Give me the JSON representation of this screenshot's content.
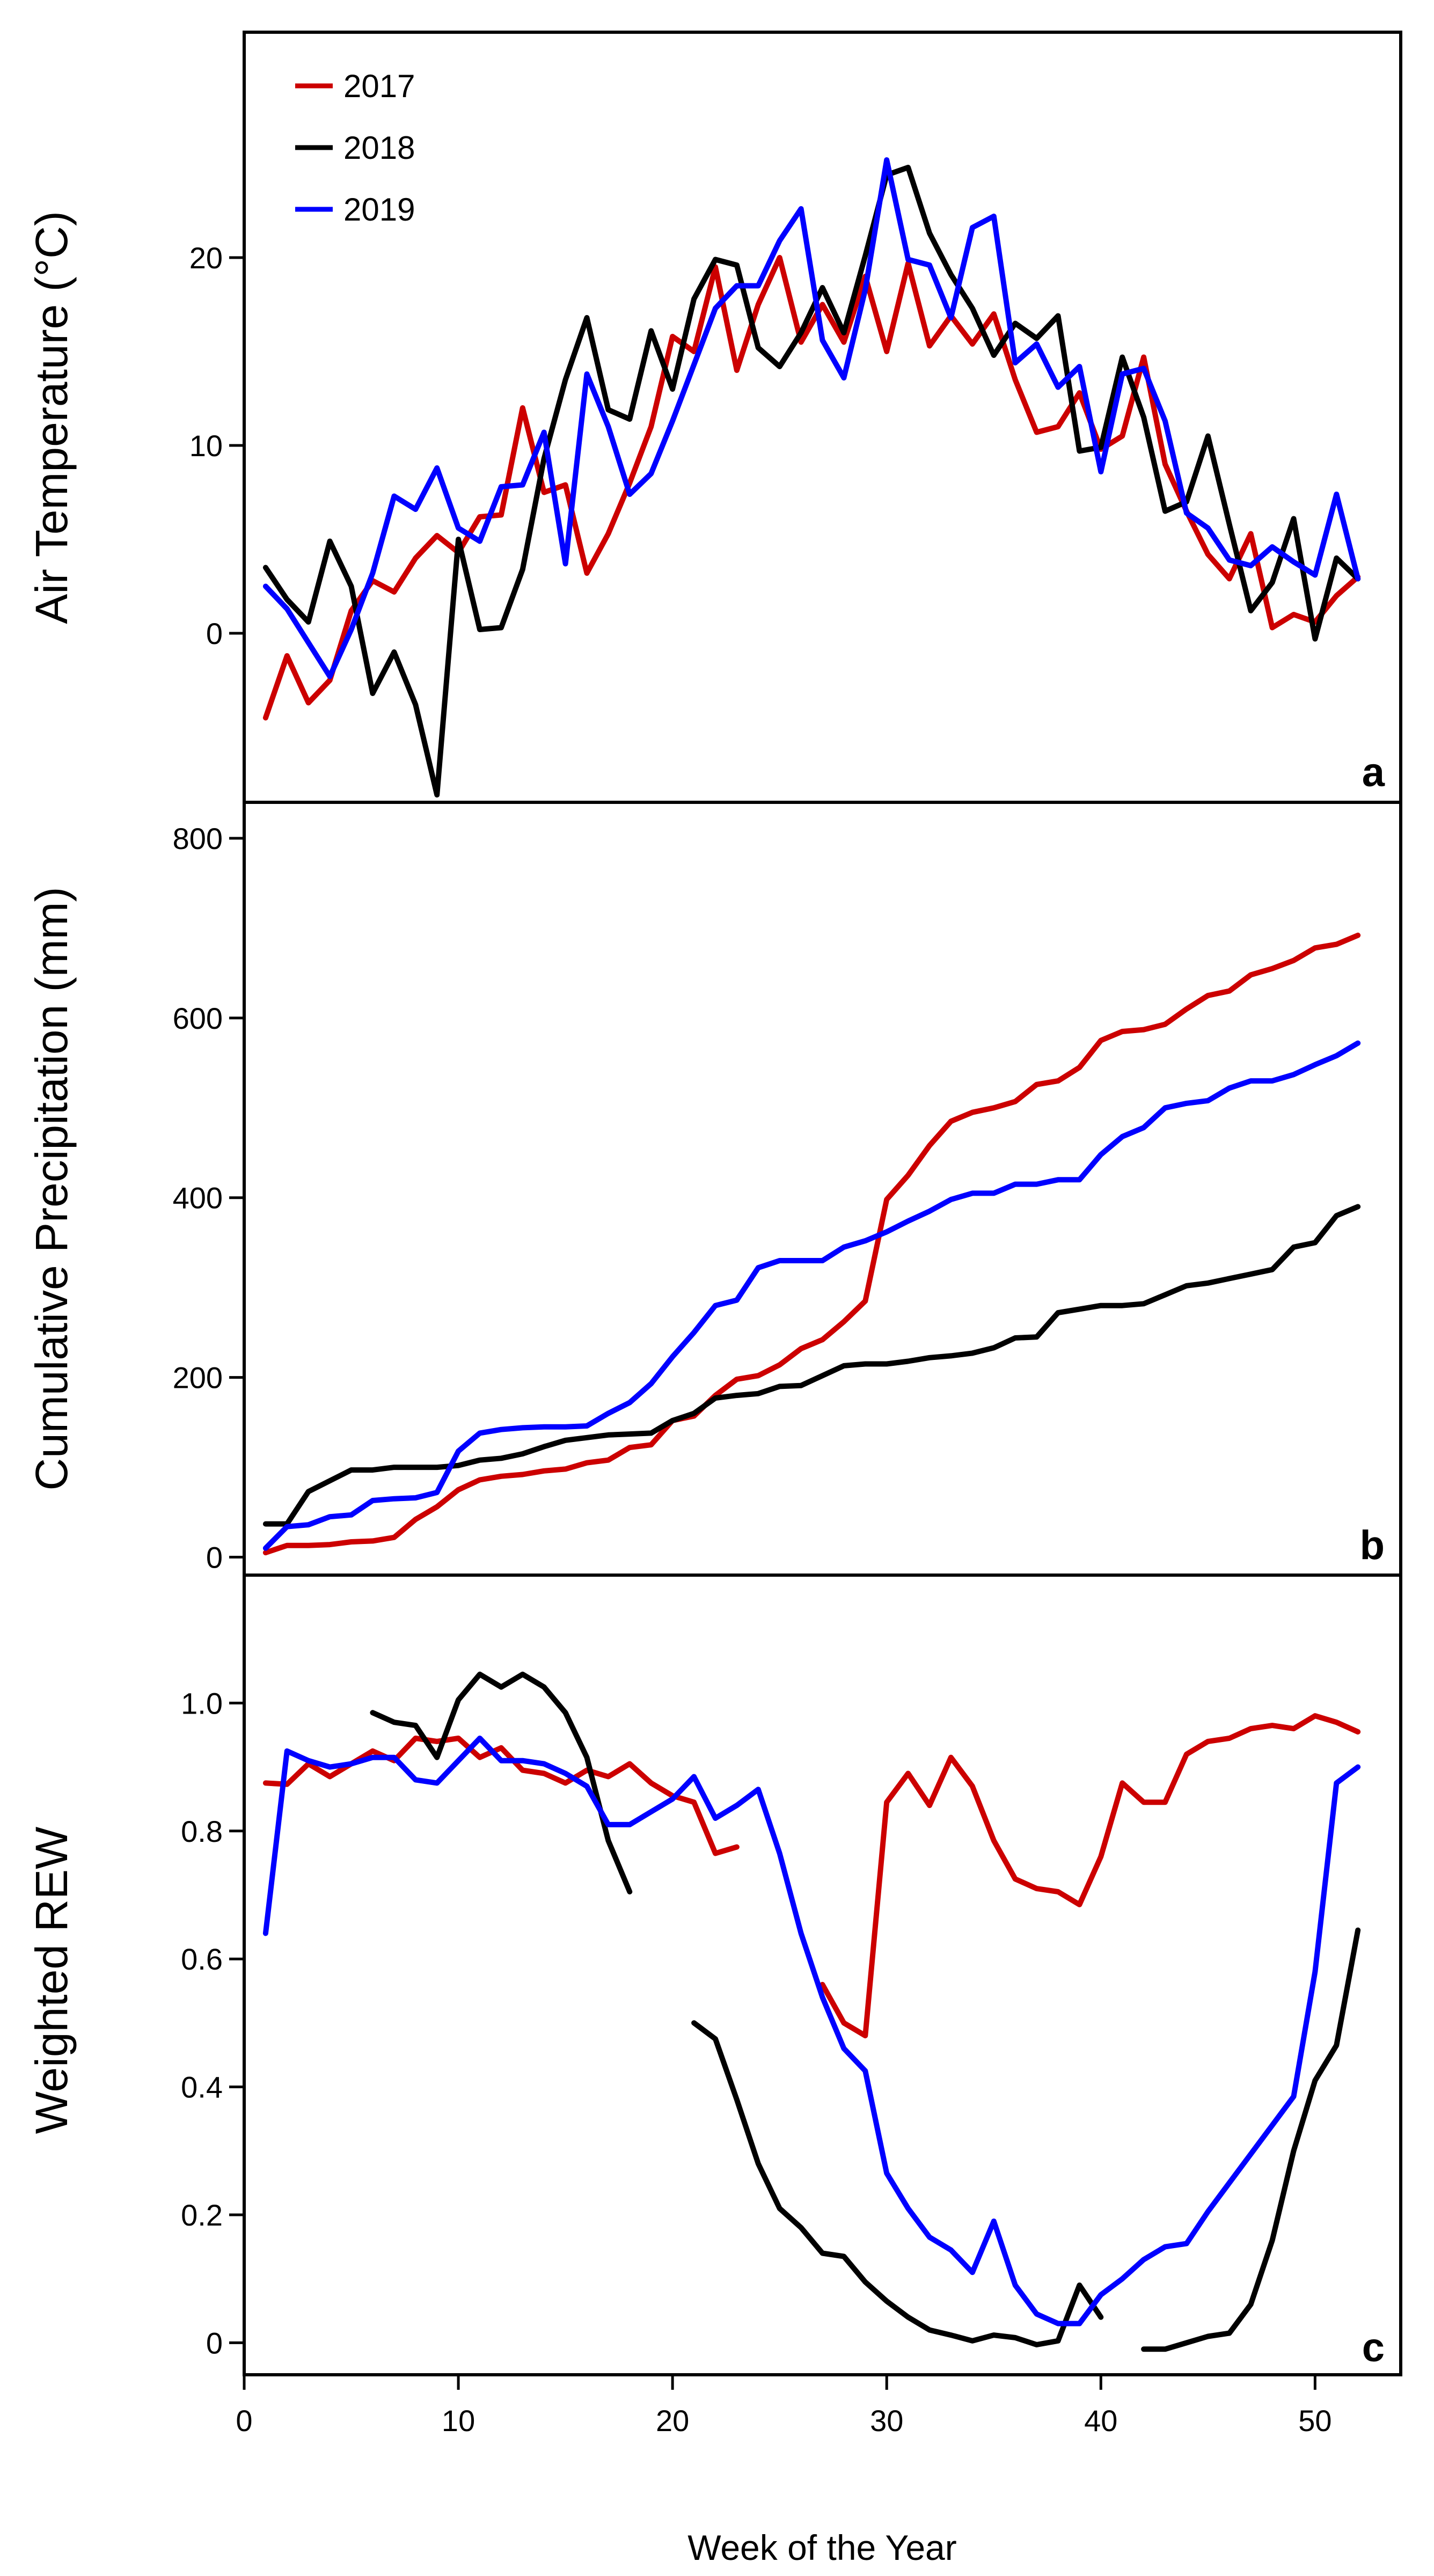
{
  "chart_data": [
    {
      "panel": "a",
      "type": "line",
      "ylabel": "Air Temperature (°C)",
      "xlabel": "",
      "xlim": [
        0,
        54
      ],
      "ylim": [
        -9,
        32
      ],
      "yticks": [
        0,
        10,
        20
      ],
      "xticks": [],
      "legend": {
        "position": "top-left",
        "entries": [
          {
            "label": "2017",
            "color": "#cc0000"
          },
          {
            "label": "2018",
            "color": "#000000"
          },
          {
            "label": "2019",
            "color": "#0000ff"
          }
        ]
      },
      "series": [
        {
          "name": "2017",
          "color": "#cc0000",
          "x": [
            1,
            2,
            3,
            4,
            5,
            6,
            7,
            8,
            9,
            10,
            11,
            12,
            13,
            14,
            15,
            16,
            17,
            18,
            19,
            20,
            21,
            22,
            23,
            24,
            25,
            26,
            27,
            28,
            29,
            30,
            31,
            32,
            33,
            34,
            35,
            36,
            37,
            38,
            39,
            40,
            41,
            42,
            43,
            44,
            45,
            46,
            47,
            48,
            49,
            50,
            51,
            52
          ],
          "y": [
            -4.5,
            -1.2,
            -3.7,
            -2.5,
            1.2,
            2.8,
            2.2,
            4,
            5.2,
            4.3,
            6.2,
            6.3,
            12,
            7.5,
            7.9,
            3.2,
            5.3,
            8,
            11,
            15.8,
            15,
            19.5,
            14,
            17.5,
            20,
            15.5,
            17.5,
            15.5,
            19,
            15,
            19.7,
            15.3,
            16.9,
            15.4,
            17,
            13.5,
            10.7,
            11,
            12.8,
            9.8,
            10.5,
            14.7,
            9,
            6.5,
            4.2,
            2.9,
            5.3,
            0.3,
            1,
            0.6,
            2,
            3
          ]
        },
        {
          "name": "2018",
          "color": "#000000",
          "x": [
            1,
            2,
            3,
            4,
            5,
            6,
            7,
            8,
            9,
            10,
            11,
            12,
            13,
            14,
            15,
            16,
            17,
            18,
            19,
            20,
            21,
            22,
            23,
            24,
            25,
            26,
            27,
            28,
            29,
            30,
            31,
            32,
            33,
            34,
            35,
            36,
            37,
            38,
            39,
            40,
            41,
            42,
            43,
            44,
            45,
            46,
            47,
            48,
            49,
            50,
            51,
            52
          ],
          "y": [
            3.5,
            1.8,
            0.6,
            4.9,
            2.5,
            -3.2,
            -1,
            -3.8,
            -8.6,
            5,
            0.2,
            0.3,
            3.4,
            9.3,
            13.5,
            16.8,
            11.9,
            11.4,
            16.1,
            13,
            17.8,
            19.9,
            19.6,
            15.2,
            14.2,
            16,
            18.4,
            16,
            20.1,
            24.4,
            24.8,
            21.3,
            19.1,
            17.3,
            14.8,
            16.5,
            15.7,
            16.9,
            9.7,
            9.9,
            14.7,
            11.5,
            6.5,
            7,
            10.5,
            5.8,
            1.2,
            2.7,
            6.1,
            -0.3,
            4,
            2.9
          ]
        },
        {
          "name": "2019",
          "color": "#0000ff",
          "x": [
            1,
            2,
            3,
            4,
            5,
            6,
            7,
            8,
            9,
            10,
            11,
            12,
            13,
            14,
            15,
            16,
            17,
            18,
            19,
            20,
            21,
            22,
            23,
            24,
            25,
            26,
            27,
            28,
            29,
            30,
            31,
            32,
            33,
            34,
            35,
            36,
            37,
            38,
            39,
            40,
            41,
            42,
            43,
            44,
            45,
            46,
            47,
            48,
            49,
            50,
            51,
            52
          ],
          "y": [
            2.5,
            1.3,
            -0.5,
            -2.3,
            0.2,
            3.2,
            7.3,
            6.6,
            8.8,
            5.6,
            4.9,
            7.8,
            7.9,
            10.7,
            3.7,
            13.8,
            11,
            7.4,
            8.5,
            11.3,
            14.3,
            17.3,
            18.5,
            18.5,
            20.9,
            22.6,
            15.6,
            13.6,
            18.3,
            25.2,
            19.9,
            19.6,
            16.8,
            21.6,
            22.2,
            14.4,
            15.4,
            13.1,
            14.2,
            8.6,
            13.8,
            14.1,
            11.3,
            6.4,
            5.6,
            3.9,
            3.6,
            4.6,
            3.8,
            3.1,
            7.4,
            2.9
          ]
        }
      ]
    },
    {
      "panel": "b",
      "type": "line",
      "ylabel": "Cumulative Precipitation (mm)",
      "xlabel": "",
      "xlim": [
        0,
        54
      ],
      "ylim": [
        -20,
        840
      ],
      "yticks": [
        0,
        200,
        400,
        600,
        800
      ],
      "xticks": [],
      "series": [
        {
          "name": "2017",
          "color": "#cc0000",
          "x": [
            1,
            2,
            3,
            4,
            5,
            6,
            7,
            8,
            9,
            10,
            11,
            12,
            13,
            14,
            15,
            16,
            17,
            18,
            19,
            20,
            21,
            22,
            23,
            24,
            25,
            26,
            27,
            28,
            29,
            30,
            31,
            32,
            33,
            34,
            35,
            36,
            37,
            38,
            39,
            40,
            41,
            42,
            43,
            44,
            45,
            46,
            47,
            48,
            49,
            50,
            51,
            52
          ],
          "y": [
            5,
            13,
            13,
            14,
            17,
            18,
            22,
            42,
            56,
            75,
            86,
            90,
            92,
            96,
            98,
            105,
            108,
            122,
            125,
            152,
            157,
            180,
            198,
            202,
            214,
            232,
            242,
            262,
            285,
            398,
            425,
            458,
            485,
            495,
            500,
            507,
            526,
            530,
            545,
            575,
            585,
            587,
            593,
            610,
            625,
            630,
            648,
            655,
            664,
            678,
            682,
            692
          ]
        },
        {
          "name": "2018",
          "color": "#000000",
          "x": [
            1,
            2,
            3,
            4,
            5,
            6,
            7,
            8,
            9,
            10,
            11,
            12,
            13,
            14,
            15,
            16,
            17,
            18,
            19,
            20,
            21,
            22,
            23,
            24,
            25,
            26,
            27,
            28,
            29,
            30,
            31,
            32,
            33,
            34,
            35,
            36,
            37,
            38,
            39,
            40,
            41,
            42,
            43,
            44,
            45,
            46,
            47,
            48,
            49,
            50,
            51,
            52
          ],
          "y": [
            37,
            37,
            73,
            85,
            97,
            97,
            100,
            100,
            100,
            102,
            108,
            110,
            115,
            123,
            130,
            133,
            136,
            137,
            138,
            152,
            160,
            177,
            180,
            182,
            190,
            191,
            202,
            213,
            215,
            215,
            218,
            222,
            224,
            227,
            233,
            244,
            245,
            272,
            276,
            280,
            280,
            282,
            292,
            302,
            305,
            310,
            315,
            320,
            345,
            350,
            380,
            390
          ]
        },
        {
          "name": "2019",
          "color": "#0000ff",
          "x": [
            1,
            2,
            3,
            4,
            5,
            6,
            7,
            8,
            9,
            10,
            11,
            12,
            13,
            14,
            15,
            16,
            17,
            18,
            19,
            20,
            21,
            22,
            23,
            24,
            25,
            26,
            27,
            28,
            29,
            30,
            31,
            32,
            33,
            34,
            35,
            36,
            37,
            38,
            39,
            40,
            41,
            42,
            43,
            44,
            45,
            46,
            47,
            48,
            49,
            50,
            51,
            52
          ],
          "y": [
            10,
            34,
            36,
            45,
            47,
            63,
            65,
            66,
            72,
            118,
            138,
            142,
            144,
            145,
            145,
            146,
            160,
            172,
            193,
            223,
            250,
            280,
            286,
            322,
            330,
            330,
            330,
            345,
            352,
            362,
            374,
            385,
            398,
            405,
            405,
            415,
            415,
            420,
            420,
            448,
            468,
            478,
            500,
            505,
            508,
            522,
            530,
            530,
            537,
            548,
            558,
            572
          ]
        }
      ]
    },
    {
      "panel": "c",
      "type": "line",
      "ylabel": "Weighted REW",
      "xlabel": "Week of the Year",
      "xlim": [
        0,
        54
      ],
      "ylim": [
        -0.05,
        1.2
      ],
      "yticks": [
        "0",
        "0.2",
        "0.4",
        "0.6",
        "0.8",
        "1.0"
      ],
      "xticks": [
        0,
        10,
        20,
        30,
        40,
        50
      ],
      "series": [
        {
          "name": "2017 segment 1",
          "color": "#cc0000",
          "x": [
            1,
            2,
            3,
            4,
            5,
            6,
            7,
            8,
            9,
            10,
            11,
            12,
            13,
            14,
            15,
            16,
            17,
            18,
            19,
            20,
            21,
            22,
            23
          ],
          "y": [
            0.875,
            0.873,
            0.905,
            0.885,
            0.905,
            0.925,
            0.91,
            0.945,
            0.94,
            0.945,
            0.915,
            0.93,
            0.895,
            0.89,
            0.875,
            0.895,
            0.885,
            0.905,
            0.875,
            0.855,
            0.845,
            0.765,
            0.775
          ]
        },
        {
          "name": "2017 segment 2",
          "color": "#cc0000",
          "x": [
            27,
            28,
            29,
            30,
            31,
            32,
            33,
            34,
            35,
            36,
            37,
            38,
            39,
            40,
            41,
            42,
            43,
            44,
            45,
            46,
            47,
            48,
            49,
            50,
            51,
            52
          ],
          "y": [
            0.56,
            0.5,
            0.48,
            0.845,
            0.89,
            0.84,
            0.915,
            0.87,
            0.785,
            0.725,
            0.71,
            0.705,
            0.685,
            0.76,
            0.875,
            0.845,
            0.845,
            0.92,
            0.94,
            0.945,
            0.96,
            0.965,
            0.96,
            0.98,
            0.97,
            0.955
          ]
        },
        {
          "name": "2018 segment 1",
          "color": "#000000",
          "x": [
            6,
            7,
            8,
            9,
            10,
            11,
            12,
            13,
            14,
            15,
            16,
            17,
            18
          ],
          "y": [
            0.985,
            0.97,
            0.965,
            0.915,
            1.005,
            1.045,
            1.025,
            1.045,
            1.025,
            0.985,
            0.915,
            0.785,
            0.705
          ]
        },
        {
          "name": "2018 segment 2",
          "color": "#000000",
          "x": [
            21,
            22,
            23,
            24,
            25,
            26,
            27,
            28,
            29,
            30,
            31,
            32,
            33,
            34,
            35,
            36,
            37,
            38,
            39,
            40
          ],
          "y": [
            0.5,
            0.475,
            0.38,
            0.28,
            0.21,
            0.18,
            0.14,
            0.135,
            0.095,
            0.065,
            0.04,
            0.02,
            0.012,
            0.003,
            0.012,
            0.008,
            -0.003,
            0.003,
            0.09,
            0.04
          ]
        },
        {
          "name": "2018 segment 3",
          "color": "#000000",
          "x": [
            42,
            43,
            44,
            45,
            46,
            47,
            48,
            49,
            50,
            51,
            52
          ],
          "y": [
            -0.01,
            -0.01,
            0,
            0.01,
            0.015,
            0.06,
            0.16,
            0.3,
            0.41,
            0.465,
            0.645
          ]
        },
        {
          "name": "2019",
          "color": "#0000ff",
          "x": [
            1,
            2,
            3,
            4,
            5,
            6,
            7,
            8,
            9,
            10,
            11,
            12,
            13,
            14,
            15,
            16,
            17,
            18,
            19,
            20,
            21,
            22,
            23,
            24,
            25,
            26,
            27,
            28,
            29,
            30,
            31,
            32,
            33,
            34,
            35,
            36,
            37,
            38,
            39,
            40,
            41,
            42,
            43,
            44,
            45,
            46,
            47,
            48,
            49,
            50,
            51,
            52
          ],
          "y": [
            0.64,
            0.925,
            0.91,
            0.9,
            0.905,
            0.915,
            0.915,
            0.88,
            0.875,
            0.91,
            0.945,
            0.91,
            0.91,
            0.905,
            0.89,
            0.87,
            0.81,
            0.81,
            0.83,
            0.85,
            0.885,
            0.82,
            0.84,
            0.865,
            0.765,
            0.64,
            0.54,
            0.46,
            0.425,
            0.265,
            0.21,
            0.165,
            0.145,
            0.11,
            0.19,
            0.09,
            0.045,
            0.03,
            0.03,
            0.075,
            0.1,
            0.13,
            0.15,
            0.155,
            0.205,
            0.25,
            0.295,
            0.34,
            0.385,
            0.58,
            0.875,
            0.9
          ]
        }
      ]
    }
  ]
}
